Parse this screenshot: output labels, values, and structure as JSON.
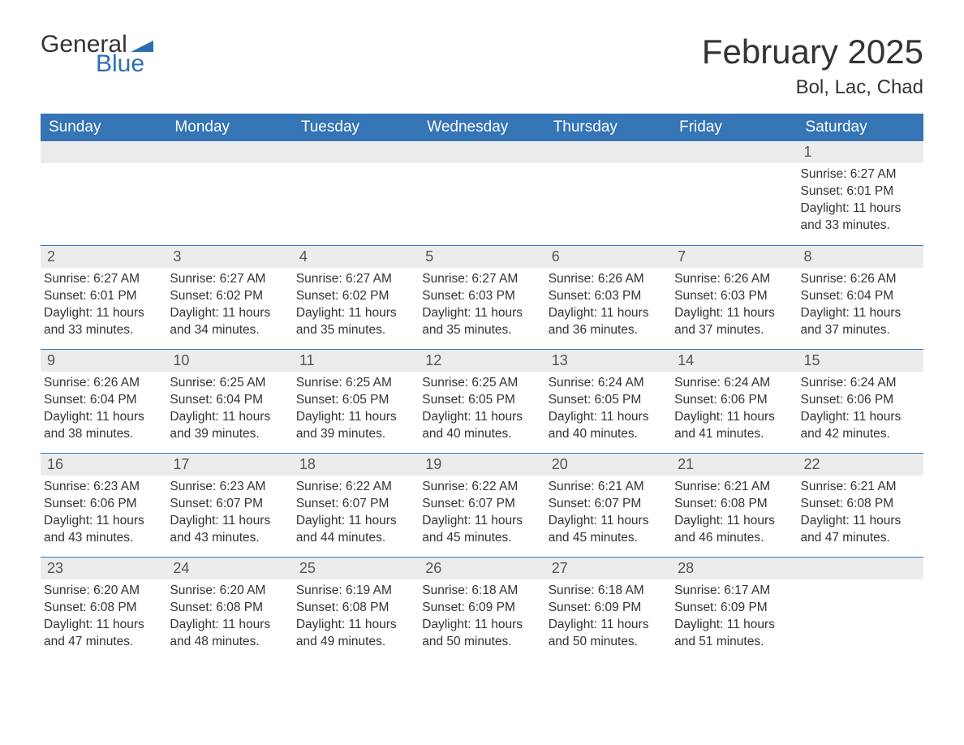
{
  "brand": {
    "word1": "General",
    "word2": "Blue",
    "accent_color": "#2f6fb0"
  },
  "title": "February 2025",
  "location": "Bol, Lac, Chad",
  "header_bg": "#3574b5",
  "header_fg": "#ffffff",
  "daynum_bg": "#ececec",
  "columns": [
    "Sunday",
    "Monday",
    "Tuesday",
    "Wednesday",
    "Thursday",
    "Friday",
    "Saturday"
  ],
  "weeks": [
    [
      {
        "n": "",
        "sunrise": "",
        "sunset": "",
        "daylight": ""
      },
      {
        "n": "",
        "sunrise": "",
        "sunset": "",
        "daylight": ""
      },
      {
        "n": "",
        "sunrise": "",
        "sunset": "",
        "daylight": ""
      },
      {
        "n": "",
        "sunrise": "",
        "sunset": "",
        "daylight": ""
      },
      {
        "n": "",
        "sunrise": "",
        "sunset": "",
        "daylight": ""
      },
      {
        "n": "",
        "sunrise": "",
        "sunset": "",
        "daylight": ""
      },
      {
        "n": "1",
        "sunrise": "Sunrise: 6:27 AM",
        "sunset": "Sunset: 6:01 PM",
        "daylight": "Daylight: 11 hours and 33 minutes."
      }
    ],
    [
      {
        "n": "2",
        "sunrise": "Sunrise: 6:27 AM",
        "sunset": "Sunset: 6:01 PM",
        "daylight": "Daylight: 11 hours and 33 minutes."
      },
      {
        "n": "3",
        "sunrise": "Sunrise: 6:27 AM",
        "sunset": "Sunset: 6:02 PM",
        "daylight": "Daylight: 11 hours and 34 minutes."
      },
      {
        "n": "4",
        "sunrise": "Sunrise: 6:27 AM",
        "sunset": "Sunset: 6:02 PM",
        "daylight": "Daylight: 11 hours and 35 minutes."
      },
      {
        "n": "5",
        "sunrise": "Sunrise: 6:27 AM",
        "sunset": "Sunset: 6:03 PM",
        "daylight": "Daylight: 11 hours and 35 minutes."
      },
      {
        "n": "6",
        "sunrise": "Sunrise: 6:26 AM",
        "sunset": "Sunset: 6:03 PM",
        "daylight": "Daylight: 11 hours and 36 minutes."
      },
      {
        "n": "7",
        "sunrise": "Sunrise: 6:26 AM",
        "sunset": "Sunset: 6:03 PM",
        "daylight": "Daylight: 11 hours and 37 minutes."
      },
      {
        "n": "8",
        "sunrise": "Sunrise: 6:26 AM",
        "sunset": "Sunset: 6:04 PM",
        "daylight": "Daylight: 11 hours and 37 minutes."
      }
    ],
    [
      {
        "n": "9",
        "sunrise": "Sunrise: 6:26 AM",
        "sunset": "Sunset: 6:04 PM",
        "daylight": "Daylight: 11 hours and 38 minutes."
      },
      {
        "n": "10",
        "sunrise": "Sunrise: 6:25 AM",
        "sunset": "Sunset: 6:04 PM",
        "daylight": "Daylight: 11 hours and 39 minutes."
      },
      {
        "n": "11",
        "sunrise": "Sunrise: 6:25 AM",
        "sunset": "Sunset: 6:05 PM",
        "daylight": "Daylight: 11 hours and 39 minutes."
      },
      {
        "n": "12",
        "sunrise": "Sunrise: 6:25 AM",
        "sunset": "Sunset: 6:05 PM",
        "daylight": "Daylight: 11 hours and 40 minutes."
      },
      {
        "n": "13",
        "sunrise": "Sunrise: 6:24 AM",
        "sunset": "Sunset: 6:05 PM",
        "daylight": "Daylight: 11 hours and 40 minutes."
      },
      {
        "n": "14",
        "sunrise": "Sunrise: 6:24 AM",
        "sunset": "Sunset: 6:06 PM",
        "daylight": "Daylight: 11 hours and 41 minutes."
      },
      {
        "n": "15",
        "sunrise": "Sunrise: 6:24 AM",
        "sunset": "Sunset: 6:06 PM",
        "daylight": "Daylight: 11 hours and 42 minutes."
      }
    ],
    [
      {
        "n": "16",
        "sunrise": "Sunrise: 6:23 AM",
        "sunset": "Sunset: 6:06 PM",
        "daylight": "Daylight: 11 hours and 43 minutes."
      },
      {
        "n": "17",
        "sunrise": "Sunrise: 6:23 AM",
        "sunset": "Sunset: 6:07 PM",
        "daylight": "Daylight: 11 hours and 43 minutes."
      },
      {
        "n": "18",
        "sunrise": "Sunrise: 6:22 AM",
        "sunset": "Sunset: 6:07 PM",
        "daylight": "Daylight: 11 hours and 44 minutes."
      },
      {
        "n": "19",
        "sunrise": "Sunrise: 6:22 AM",
        "sunset": "Sunset: 6:07 PM",
        "daylight": "Daylight: 11 hours and 45 minutes."
      },
      {
        "n": "20",
        "sunrise": "Sunrise: 6:21 AM",
        "sunset": "Sunset: 6:07 PM",
        "daylight": "Daylight: 11 hours and 45 minutes."
      },
      {
        "n": "21",
        "sunrise": "Sunrise: 6:21 AM",
        "sunset": "Sunset: 6:08 PM",
        "daylight": "Daylight: 11 hours and 46 minutes."
      },
      {
        "n": "22",
        "sunrise": "Sunrise: 6:21 AM",
        "sunset": "Sunset: 6:08 PM",
        "daylight": "Daylight: 11 hours and 47 minutes."
      }
    ],
    [
      {
        "n": "23",
        "sunrise": "Sunrise: 6:20 AM",
        "sunset": "Sunset: 6:08 PM",
        "daylight": "Daylight: 11 hours and 47 minutes."
      },
      {
        "n": "24",
        "sunrise": "Sunrise: 6:20 AM",
        "sunset": "Sunset: 6:08 PM",
        "daylight": "Daylight: 11 hours and 48 minutes."
      },
      {
        "n": "25",
        "sunrise": "Sunrise: 6:19 AM",
        "sunset": "Sunset: 6:08 PM",
        "daylight": "Daylight: 11 hours and 49 minutes."
      },
      {
        "n": "26",
        "sunrise": "Sunrise: 6:18 AM",
        "sunset": "Sunset: 6:09 PM",
        "daylight": "Daylight: 11 hours and 50 minutes."
      },
      {
        "n": "27",
        "sunrise": "Sunrise: 6:18 AM",
        "sunset": "Sunset: 6:09 PM",
        "daylight": "Daylight: 11 hours and 50 minutes."
      },
      {
        "n": "28",
        "sunrise": "Sunrise: 6:17 AM",
        "sunset": "Sunset: 6:09 PM",
        "daylight": "Daylight: 11 hours and 51 minutes."
      },
      {
        "n": "",
        "sunrise": "",
        "sunset": "",
        "daylight": ""
      }
    ]
  ]
}
